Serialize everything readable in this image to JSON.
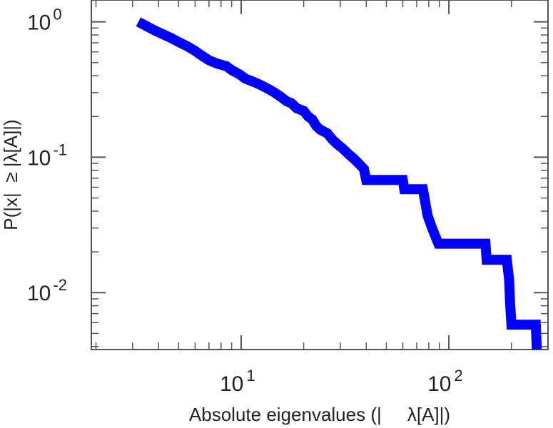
{
  "chart_data": {
    "type": "line",
    "xlabel": "Absolute eigenvalues (|     λ[A]|)",
    "ylabel": "P(|x|  ≥ |λ[A]|)",
    "x_scale": "log",
    "y_scale": "log",
    "xlim": [
      1.9,
      300
    ],
    "ylim": [
      0.0038,
      1.45
    ],
    "x_ticks": [
      {
        "base": "10",
        "exp": "1",
        "value": 10
      },
      {
        "base": "10",
        "exp": "2",
        "value": 100
      }
    ],
    "y_ticks": [
      {
        "base": "10",
        "exp": "0",
        "value": 1
      },
      {
        "base": "10",
        "exp": "-1",
        "value": 0.1
      },
      {
        "base": "10",
        "exp": "-2",
        "value": 0.01
      }
    ],
    "grid": false,
    "step": true,
    "series": [
      {
        "color": "#0000ff",
        "points": [
          [
            3.2,
            1.0
          ],
          [
            3.5,
            0.93
          ],
          [
            3.8,
            0.87
          ],
          [
            4.2,
            0.81
          ],
          [
            4.6,
            0.76
          ],
          [
            5.0,
            0.71
          ],
          [
            5.5,
            0.66
          ],
          [
            6.0,
            0.61
          ],
          [
            6.5,
            0.56
          ],
          [
            7.0,
            0.52
          ],
          [
            7.7,
            0.49
          ],
          [
            8.5,
            0.47
          ],
          [
            9.0,
            0.44
          ],
          [
            9.8,
            0.41
          ],
          [
            10.5,
            0.38
          ],
          [
            11.5,
            0.36
          ],
          [
            12.5,
            0.34
          ],
          [
            13.5,
            0.32
          ],
          [
            14.5,
            0.3
          ],
          [
            15.5,
            0.28
          ],
          [
            16.5,
            0.26
          ],
          [
            17.5,
            0.25
          ],
          [
            18.5,
            0.23
          ],
          [
            20.0,
            0.22
          ],
          [
            21.0,
            0.2
          ],
          [
            22.0,
            0.19
          ],
          [
            23.0,
            0.17
          ],
          [
            24.0,
            0.16
          ],
          [
            26.0,
            0.15
          ],
          [
            27.5,
            0.135
          ],
          [
            29.0,
            0.125
          ],
          [
            31.0,
            0.115
          ],
          [
            33.0,
            0.105
          ],
          [
            35.0,
            0.097
          ],
          [
            37.0,
            0.089
          ],
          [
            39.0,
            0.082
          ],
          [
            40.0,
            0.068
          ],
          [
            60.0,
            0.068
          ],
          [
            61.0,
            0.058
          ],
          [
            75.0,
            0.058
          ],
          [
            77.0,
            0.046
          ],
          [
            79.0,
            0.037
          ],
          [
            83.0,
            0.03
          ],
          [
            87.0,
            0.025
          ],
          [
            89.0,
            0.023
          ],
          [
            150.0,
            0.023
          ],
          [
            152.0,
            0.0175
          ],
          [
            190.0,
            0.0175
          ],
          [
            195.0,
            0.0125
          ],
          [
            197.0,
            0.0085
          ],
          [
            200.0,
            0.0058
          ],
          [
            262.0,
            0.0058
          ],
          [
            265.0,
            0.0038
          ]
        ]
      }
    ]
  }
}
